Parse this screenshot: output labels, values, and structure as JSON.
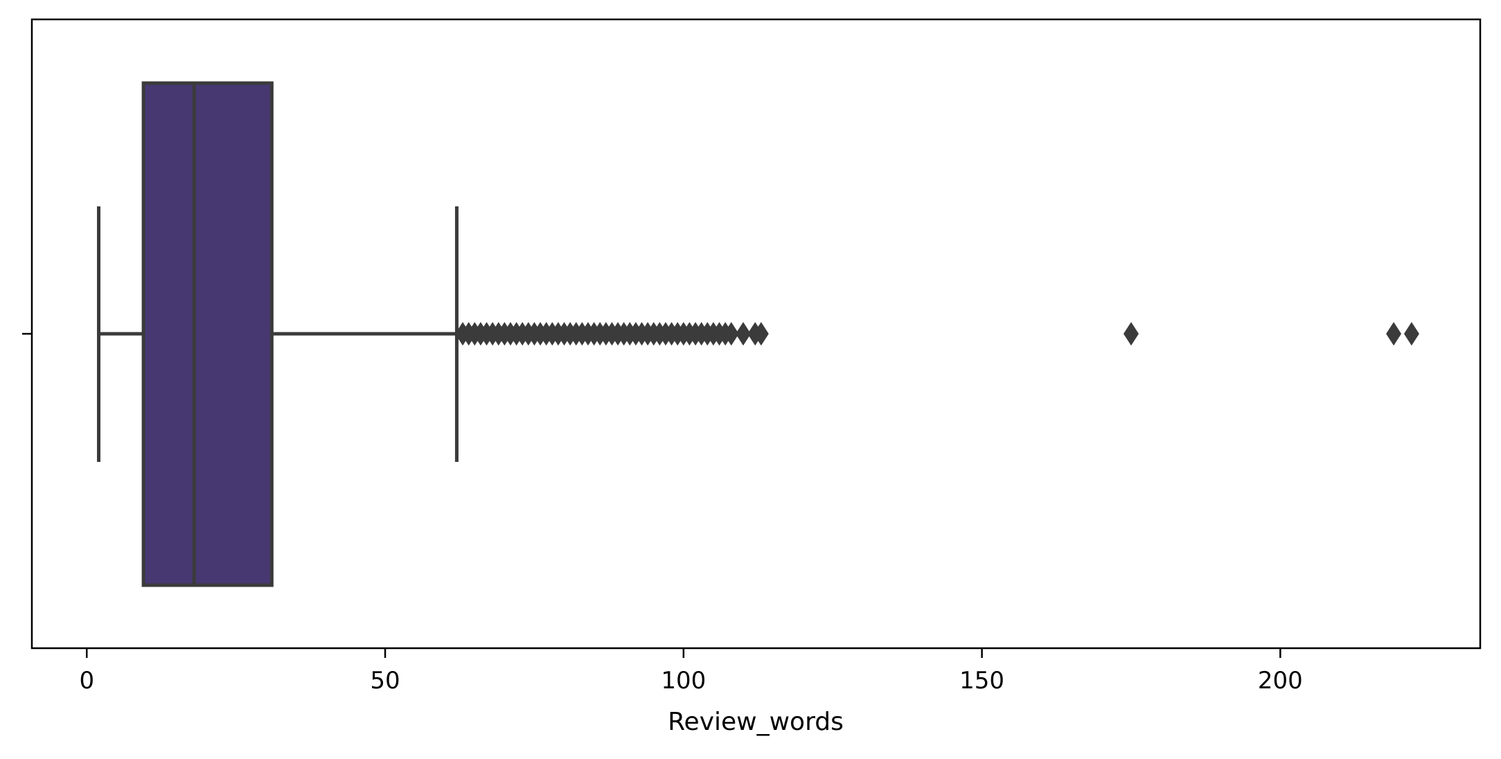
{
  "chart_data": {
    "type": "box",
    "orientation": "horizontal",
    "title": "",
    "xlabel": "Review_words",
    "ylabel": "",
    "xlim": [
      -9.2,
      233.5
    ],
    "xticks": [
      0,
      50,
      100,
      150,
      200
    ],
    "xtick_labels": [
      "0",
      "50",
      "100",
      "150",
      "200"
    ],
    "grid": false,
    "box": {
      "whisker_low": 2,
      "q1": 9.5,
      "median": 18,
      "q3": 31,
      "whisker_high": 62
    },
    "outliers": [
      63,
      64,
      65,
      66,
      67,
      68,
      69,
      70,
      71,
      72,
      73,
      74,
      75,
      76,
      77,
      78,
      79,
      80,
      81,
      82,
      83,
      84,
      85,
      86,
      87,
      88,
      89,
      90,
      91,
      92,
      93,
      94,
      95,
      96,
      97,
      98,
      99,
      100,
      101,
      102,
      103,
      104,
      105,
      106,
      107,
      108,
      110,
      112,
      113,
      175,
      219,
      222
    ],
    "colors": {
      "box_fill": "#473872",
      "lines": "#3b3b3b",
      "outlier": "#3b3b3b",
      "frame": "#000000"
    }
  }
}
